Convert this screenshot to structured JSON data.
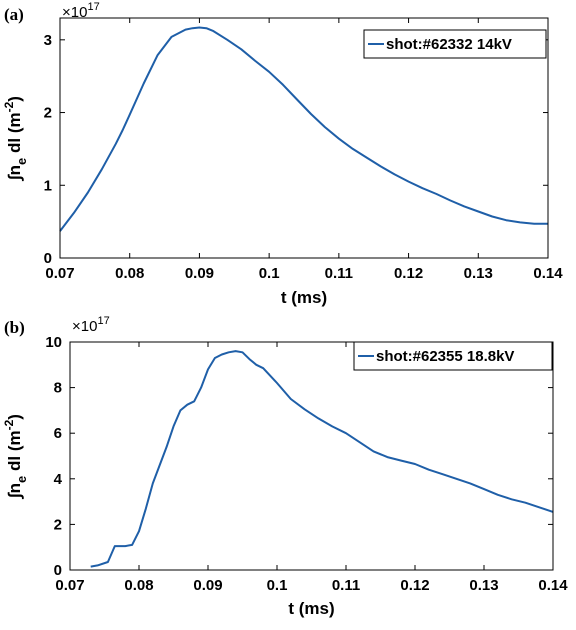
{
  "chart_data": [
    {
      "type": "line",
      "panel_label": "(a)",
      "exponent_label": "×10",
      "exponent_power": "17",
      "xlabel": "t (ms)",
      "ylabel": "∫n",
      "ylabel_sub": "e",
      "ylabel_rest": " dl (m",
      "ylabel_sup": "-2",
      "ylabel_close": ")",
      "xlim": [
        0.07,
        0.14
      ],
      "ylim": [
        0,
        3.3
      ],
      "xticks": [
        0.07,
        0.08,
        0.09,
        0.1,
        0.11,
        0.12,
        0.13,
        0.14
      ],
      "xtick_labels": [
        "0.07",
        "0.08",
        "0.09",
        "0.1",
        "0.11",
        "0.12",
        "0.13",
        "0.14"
      ],
      "yticks": [
        0,
        1,
        2,
        3
      ],
      "ytick_labels": [
        "0",
        "1",
        "2",
        "3"
      ],
      "legend_position": "top-right",
      "grid": false,
      "color": "#1f5fa8",
      "series": [
        {
          "name": "shot:#62332 14kV",
          "x": [
            0.07,
            0.072,
            0.074,
            0.076,
            0.078,
            0.079,
            0.08,
            0.082,
            0.084,
            0.086,
            0.088,
            0.089,
            0.09,
            0.091,
            0.092,
            0.094,
            0.096,
            0.098,
            0.1,
            0.102,
            0.104,
            0.106,
            0.108,
            0.11,
            0.112,
            0.114,
            0.116,
            0.118,
            0.12,
            0.122,
            0.124,
            0.126,
            0.128,
            0.13,
            0.132,
            0.134,
            0.136,
            0.138,
            0.14
          ],
          "y": [
            0.37,
            0.62,
            0.9,
            1.22,
            1.57,
            1.76,
            1.97,
            2.4,
            2.79,
            3.04,
            3.14,
            3.16,
            3.17,
            3.16,
            3.12,
            3.0,
            2.87,
            2.71,
            2.56,
            2.38,
            2.18,
            1.98,
            1.8,
            1.64,
            1.5,
            1.38,
            1.26,
            1.15,
            1.05,
            0.96,
            0.88,
            0.79,
            0.71,
            0.64,
            0.57,
            0.52,
            0.49,
            0.47,
            0.47
          ]
        }
      ]
    },
    {
      "type": "line",
      "panel_label": "(b)",
      "exponent_label": "×10",
      "exponent_power": "17",
      "xlabel": "t (ms)",
      "ylabel": "∫n",
      "ylabel_sub": "e",
      "ylabel_rest": " dl (m",
      "ylabel_sup": "-2",
      "ylabel_close": ")",
      "xlim": [
        0.07,
        0.14
      ],
      "ylim": [
        0,
        10
      ],
      "xticks": [
        0.07,
        0.08,
        0.09,
        0.1,
        0.11,
        0.12,
        0.13,
        0.14
      ],
      "xtick_labels": [
        "0.07",
        "0.08",
        "0.09",
        "0.1",
        "0.11",
        "0.12",
        "0.13",
        "0.14"
      ],
      "yticks": [
        0,
        2,
        4,
        6,
        8,
        10
      ],
      "ytick_labels": [
        "0",
        "2",
        "4",
        "6",
        "8",
        "10"
      ],
      "legend_position": "top-right",
      "grid": false,
      "color": "#1f5fa8",
      "series": [
        {
          "name": "shot:#62355 18.8kV",
          "x": [
            0.073,
            0.074,
            0.0755,
            0.0765,
            0.077,
            0.078,
            0.079,
            0.08,
            0.081,
            0.082,
            0.083,
            0.084,
            0.085,
            0.086,
            0.087,
            0.088,
            0.089,
            0.09,
            0.091,
            0.092,
            0.093,
            0.094,
            0.095,
            0.096,
            0.097,
            0.098,
            0.1,
            0.102,
            0.104,
            0.106,
            0.108,
            0.11,
            0.112,
            0.114,
            0.116,
            0.118,
            0.12,
            0.122,
            0.124,
            0.126,
            0.128,
            0.13,
            0.132,
            0.134,
            0.136,
            0.138,
            0.14
          ],
          "y": [
            0.15,
            0.2,
            0.35,
            1.05,
            1.05,
            1.05,
            1.1,
            1.7,
            2.7,
            3.8,
            4.6,
            5.4,
            6.3,
            7.0,
            7.25,
            7.4,
            8.0,
            8.8,
            9.3,
            9.45,
            9.55,
            9.6,
            9.55,
            9.25,
            9.0,
            8.85,
            8.2,
            7.5,
            7.05,
            6.65,
            6.3,
            6.0,
            5.6,
            5.2,
            4.95,
            4.8,
            4.65,
            4.4,
            4.2,
            4.0,
            3.8,
            3.55,
            3.3,
            3.1,
            2.95,
            2.75,
            2.55
          ]
        }
      ]
    }
  ]
}
